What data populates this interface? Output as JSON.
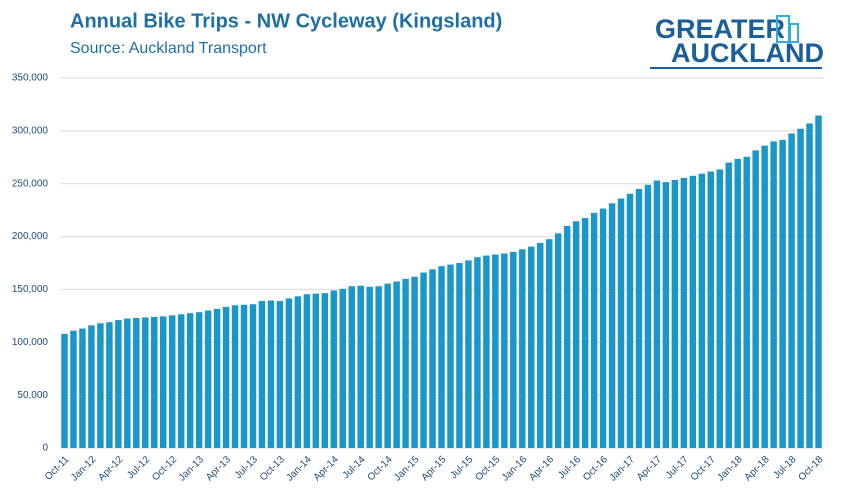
{
  "chart_data": {
    "type": "bar",
    "title": "Annual Bike Trips - NW Cycleway (Kingsland)",
    "subtitle": "Source: Auckland Transport",
    "logo": [
      "GREATER",
      "AUCKLAND"
    ],
    "color": "#1b96c8",
    "grid": true,
    "ylim": [
      0,
      350000
    ],
    "yticks": [
      0,
      {
        "value": 50000,
        "label": "50,000"
      },
      {
        "value": 100000,
        "label": "100,000"
      },
      {
        "value": 150000,
        "label": "150,000"
      },
      {
        "value": 200000,
        "label": "200,000"
      },
      {
        "value": 250000,
        "label": "250,000"
      },
      {
        "value": 300000,
        "label": "300,000"
      },
      {
        "value": 350000,
        "label": "350,000"
      }
    ],
    "categories": [
      "Oct-11",
      null,
      null,
      "Jan-12",
      null,
      null,
      "Apr-12",
      null,
      null,
      "Jul-12",
      null,
      null,
      "Oct-12",
      null,
      null,
      "Jan-13",
      null,
      null,
      "Apr-13",
      null,
      null,
      "Jul-13",
      null,
      null,
      "Oct-13",
      null,
      null,
      "Jan-14",
      null,
      null,
      "Apr-14",
      null,
      null,
      "Jul-14",
      null,
      null,
      "Oct-14",
      null,
      null,
      "Jan-15",
      null,
      null,
      "Apr-15",
      null,
      null,
      "Jul-15",
      null,
      null,
      "Oct-15",
      null,
      null,
      "Jan-16",
      null,
      null,
      "Apr-16",
      null,
      null,
      "Jul-16",
      null,
      null,
      "Oct-16",
      null,
      null,
      "Jan-17",
      null,
      null,
      "Apr-17",
      null,
      null,
      "Jul-17",
      null,
      null,
      "Oct-17",
      null,
      null,
      "Jan-18",
      null,
      null,
      "Apr-18",
      null,
      null,
      "Jul-18",
      null,
      null,
      "Oct-18"
    ],
    "values": [
      108000,
      111000,
      113000,
      116000,
      118000,
      119000,
      121000,
      122500,
      123000,
      123500,
      124000,
      124500,
      125500,
      126500,
      127500,
      128500,
      130000,
      131500,
      133500,
      135000,
      135500,
      136000,
      139000,
      139500,
      139000,
      141500,
      143500,
      145500,
      146000,
      146500,
      149000,
      150500,
      153000,
      153500,
      152500,
      153000,
      155500,
      157500,
      160000,
      162000,
      166000,
      169000,
      172000,
      173500,
      175000,
      177500,
      180500,
      182000,
      183000,
      184000,
      185500,
      188000,
      190500,
      194000,
      197500,
      203000,
      210000,
      214500,
      217500,
      222500,
      226500,
      231500,
      236000,
      240500,
      245000,
      249000,
      253000,
      251500,
      253500,
      255500,
      257500,
      259500,
      261500,
      263500,
      270000,
      273500,
      275500,
      281500,
      286000,
      290000,
      291500,
      297500,
      302000,
      307000,
      314500
    ]
  }
}
